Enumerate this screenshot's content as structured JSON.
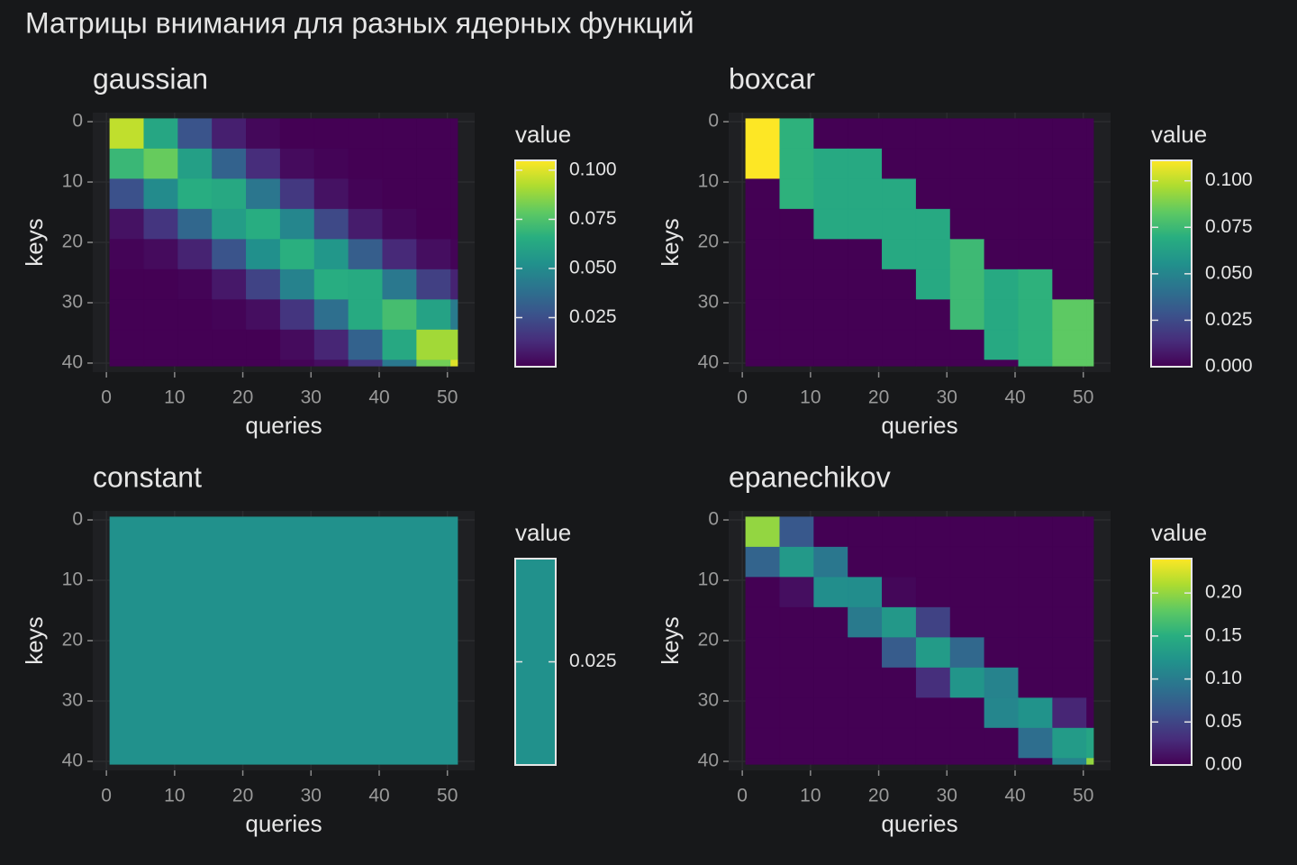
{
  "title": "Матрицы внимания для разных ядерных функций",
  "chart_data": [
    {
      "type": "heatmap",
      "title": "gaussian",
      "xlabel": "queries",
      "ylabel": "keys",
      "colorbar_title": "value",
      "colormap": "viridis",
      "xbins": [
        0.5,
        5.5,
        10.5,
        15.5,
        20.5,
        25.5,
        30.5,
        35.5,
        40.5,
        45.5,
        50.5,
        51.5
      ],
      "ybins": [
        -0.5,
        4.5,
        9.5,
        14.5,
        19.5,
        24.5,
        29.5,
        34.5,
        39.5,
        40.5
      ],
      "values": [
        [
          0.095,
          0.062,
          0.027,
          0.009,
          0.002,
          0,
          0,
          0,
          0,
          0,
          0
        ],
        [
          0.07,
          0.08,
          0.059,
          0.033,
          0.013,
          0.003,
          0.001,
          0,
          0,
          0,
          0
        ],
        [
          0.026,
          0.05,
          0.065,
          0.063,
          0.041,
          0.017,
          0.005,
          0.001,
          0,
          0,
          0
        ],
        [
          0.005,
          0.016,
          0.035,
          0.058,
          0.065,
          0.048,
          0.023,
          0.008,
          0.002,
          0,
          0
        ],
        [
          0.001,
          0.003,
          0.01,
          0.027,
          0.052,
          0.066,
          0.055,
          0.031,
          0.012,
          0.004,
          0.001
        ],
        [
          0,
          0,
          0.001,
          0.007,
          0.021,
          0.046,
          0.065,
          0.064,
          0.042,
          0.02,
          0.01
        ],
        [
          0,
          0,
          0,
          0.001,
          0.004,
          0.016,
          0.038,
          0.064,
          0.073,
          0.06,
          0.043
        ],
        [
          0,
          0,
          0,
          0,
          0,
          0.003,
          0.011,
          0.033,
          0.063,
          0.09,
          0.09
        ],
        [
          0,
          0,
          0,
          0,
          0,
          0.001,
          0.004,
          0.016,
          0.042,
          0.082,
          0.1
        ]
      ],
      "xlim": [
        -2,
        54
      ],
      "ylim": [
        -1.5,
        41.5
      ],
      "y_reversed": true,
      "xticks": [
        0,
        10,
        20,
        30,
        40,
        50
      ],
      "yticks": [
        0,
        10,
        20,
        30,
        40
      ],
      "colorlim": [
        0,
        0.105
      ],
      "colorticks": [
        0.025,
        {
          "value": 0.05,
          "label": "0.050"
        },
        0.075,
        {
          "value": 0.1,
          "label": "0.100"
        }
      ]
    },
    {
      "type": "heatmap",
      "title": "boxcar",
      "xlabel": "queries",
      "ylabel": "keys",
      "colorbar_title": "value",
      "colormap": "viridis",
      "xbins": [
        0.5,
        5.5,
        10.5,
        15.5,
        20.5,
        25.5,
        30.5,
        35.5,
        40.5,
        45.5,
        50.5,
        51.5
      ],
      "ybins": [
        -0.5,
        4.5,
        9.5,
        14.5,
        19.5,
        24.5,
        29.5,
        34.5,
        39.5,
        40.5
      ],
      "values": [
        [
          0.111,
          0.071,
          0,
          0,
          0,
          0,
          0,
          0,
          0,
          0,
          0
        ],
        [
          0.111,
          0.071,
          0.067,
          0.067,
          0,
          0,
          0,
          0,
          0,
          0,
          0
        ],
        [
          0,
          0.071,
          0.067,
          0.067,
          0.067,
          0,
          0,
          0,
          0,
          0,
          0
        ],
        [
          0,
          0,
          0.067,
          0.067,
          0.067,
          0.067,
          0,
          0,
          0,
          0,
          0
        ],
        [
          0,
          0,
          0,
          0,
          0.067,
          0.067,
          0.075,
          0,
          0,
          0,
          0
        ],
        [
          0,
          0,
          0,
          0,
          0,
          0.067,
          0.075,
          0.067,
          0.071,
          0,
          0
        ],
        [
          0,
          0,
          0,
          0,
          0,
          0,
          0.075,
          0.067,
          0.071,
          0.083,
          0.083
        ],
        [
          0,
          0,
          0,
          0,
          0,
          0,
          0,
          0.067,
          0.071,
          0.083,
          0.083
        ],
        [
          0,
          0,
          0,
          0,
          0,
          0,
          0,
          0,
          0.071,
          0.083,
          0.083
        ]
      ],
      "xlim": [
        -2,
        54
      ],
      "ylim": [
        -1.5,
        41.5
      ],
      "y_reversed": true,
      "xticks": [
        0,
        10,
        20,
        30,
        40,
        50
      ],
      "yticks": [
        0,
        10,
        20,
        30,
        40
      ],
      "colorlim": [
        0,
        0.111
      ],
      "colorticks": [
        {
          "value": 0,
          "label": "0.000"
        },
        0.025,
        {
          "value": 0.05,
          "label": "0.050"
        },
        0.075,
        {
          "value": 0.1,
          "label": "0.100"
        }
      ]
    },
    {
      "type": "heatmap",
      "title": "constant",
      "xlabel": "queries",
      "ylabel": "keys",
      "colorbar_title": "value",
      "colormap": "viridis",
      "xbins": [
        0.5,
        51.5
      ],
      "ybins": [
        -0.5,
        40.5
      ],
      "values": [
        [
          0.0244
        ]
      ],
      "xlim": [
        -2,
        54
      ],
      "ylim": [
        -1.5,
        41.5
      ],
      "y_reversed": true,
      "xticks": [
        0,
        10,
        20,
        30,
        40,
        50
      ],
      "yticks": [
        0,
        10,
        20,
        30,
        40
      ],
      "colorlim": [
        0.0244,
        0.0244
      ],
      "colorticks": [
        0.025
      ]
    },
    {
      "type": "heatmap",
      "title": "epanechikov",
      "xlabel": "queries",
      "ylabel": "keys",
      "colorbar_title": "value",
      "colormap": "viridis",
      "xbins": [
        0.5,
        5.5,
        10.5,
        15.5,
        20.5,
        25.5,
        30.5,
        35.5,
        40.5,
        45.5,
        50.5,
        51.5
      ],
      "ybins": [
        -0.5,
        4.5,
        9.5,
        14.5,
        19.5,
        24.5,
        29.5,
        34.5,
        39.5,
        40.5
      ],
      "values": [
        [
          0.2,
          0.066,
          0,
          0,
          0,
          0,
          0,
          0,
          0,
          0,
          0
        ],
        [
          0.077,
          0.128,
          0.095,
          0,
          0,
          0,
          0,
          0,
          0,
          0,
          0
        ],
        [
          0,
          0.009,
          0.117,
          0.116,
          0.004,
          0,
          0,
          0,
          0,
          0,
          0
        ],
        [
          0,
          0,
          0,
          0.098,
          0.127,
          0.047,
          0,
          0,
          0,
          0,
          0
        ],
        [
          0,
          0,
          0,
          0,
          0.069,
          0.13,
          0.081,
          0,
          0,
          0,
          0
        ],
        [
          0,
          0,
          0,
          0,
          0,
          0.032,
          0.124,
          0.106,
          0,
          0,
          0
        ],
        [
          0,
          0,
          0,
          0,
          0,
          0,
          0,
          0.109,
          0.122,
          0.025,
          0
        ],
        [
          0,
          0,
          0,
          0,
          0,
          0,
          0,
          0,
          0.086,
          0.13,
          0.14
        ],
        [
          0,
          0,
          0,
          0,
          0,
          0,
          0,
          0,
          0,
          0.106,
          0.2
        ]
      ],
      "xlim": [
        -2,
        54
      ],
      "ylim": [
        -1.5,
        41.5
      ],
      "y_reversed": true,
      "xticks": [
        0,
        10,
        20,
        30,
        40,
        50
      ],
      "yticks": [
        0,
        10,
        20,
        30,
        40
      ],
      "colorlim": [
        0,
        0.24
      ],
      "colorticks": [
        {
          "value": 0,
          "label": "0.00"
        },
        0.05,
        {
          "value": 0.1,
          "label": "0.10"
        },
        0.15,
        {
          "value": 0.2,
          "label": "0.20"
        }
      ]
    }
  ]
}
